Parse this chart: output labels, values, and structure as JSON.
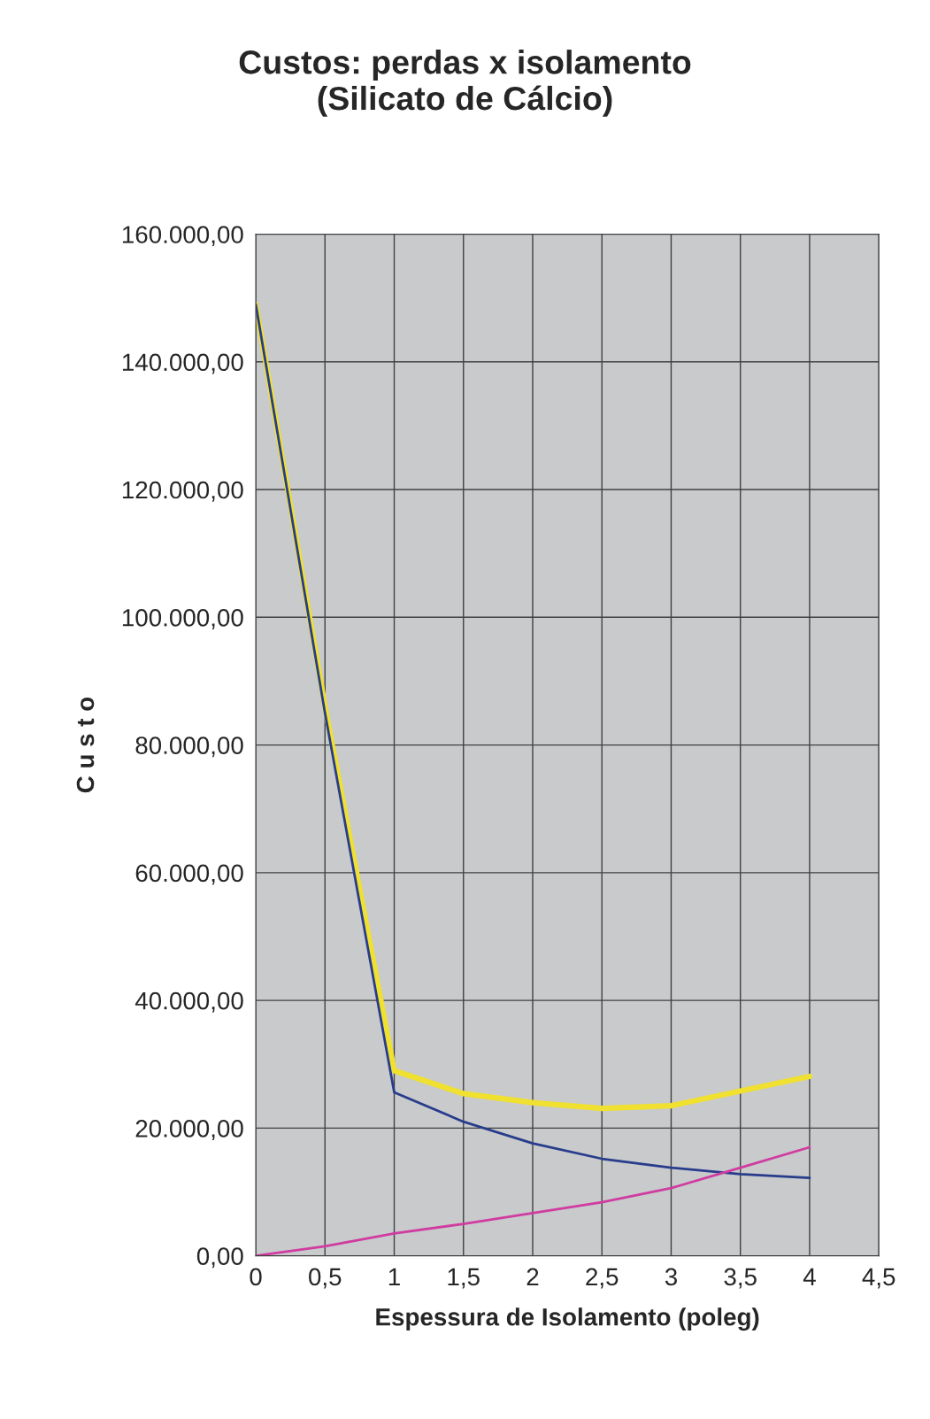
{
  "chart_data": {
    "type": "line",
    "title": "Custos: perdas x isolamento\n(Silicato de Cálcio)",
    "xlabel": "Espessura de Isolamento (poleg)",
    "ylabel": "C u s t o",
    "x": [
      0,
      0.5,
      1,
      1.5,
      2,
      2.5,
      3,
      3.5,
      4
    ],
    "series": [
      {
        "color": "#f0e030",
        "values": [
          149000,
          86000,
          29000,
          25400,
          24000,
          23100,
          23500,
          25800,
          28100
        ]
      },
      {
        "color": "#283c8c",
        "values": [
          149000,
          85000,
          25600,
          21000,
          17600,
          15200,
          13800,
          12800,
          12200
        ]
      },
      {
        "color": "#d03ca0",
        "values": [
          0,
          1500,
          3500,
          5000,
          6700,
          8400,
          10600,
          13800,
          17000
        ]
      }
    ],
    "xlim": [
      0,
      4.5
    ],
    "ylim": [
      0,
      160000
    ],
    "xticks": [
      0,
      {
        "value": 0.5,
        "label": "0,5"
      },
      1,
      {
        "value": 1.5,
        "label": "1,5"
      },
      2,
      {
        "value": 2.5,
        "label": "2,5"
      },
      3,
      {
        "value": 3.5,
        "label": "3,5"
      },
      4,
      {
        "value": 4.5,
        "label": "4,5"
      }
    ],
    "yticks": [
      {
        "value": 0,
        "label": "0,00"
      },
      {
        "value": 20000,
        "label": "20.000,00"
      },
      {
        "value": 40000,
        "label": "40.000,00"
      },
      {
        "value": 60000,
        "label": "60.000,00"
      },
      {
        "value": 80000,
        "label": "80.000,00"
      },
      {
        "value": 100000,
        "label": "100.000,00"
      },
      {
        "value": 120000,
        "label": "120.000,00"
      },
      {
        "value": 140000,
        "label": "140.000,00"
      },
      {
        "value": 160000,
        "label": "160.000,00"
      }
    ],
    "grid": true,
    "legend": false,
    "marker": "none",
    "line_style": "solid"
  }
}
